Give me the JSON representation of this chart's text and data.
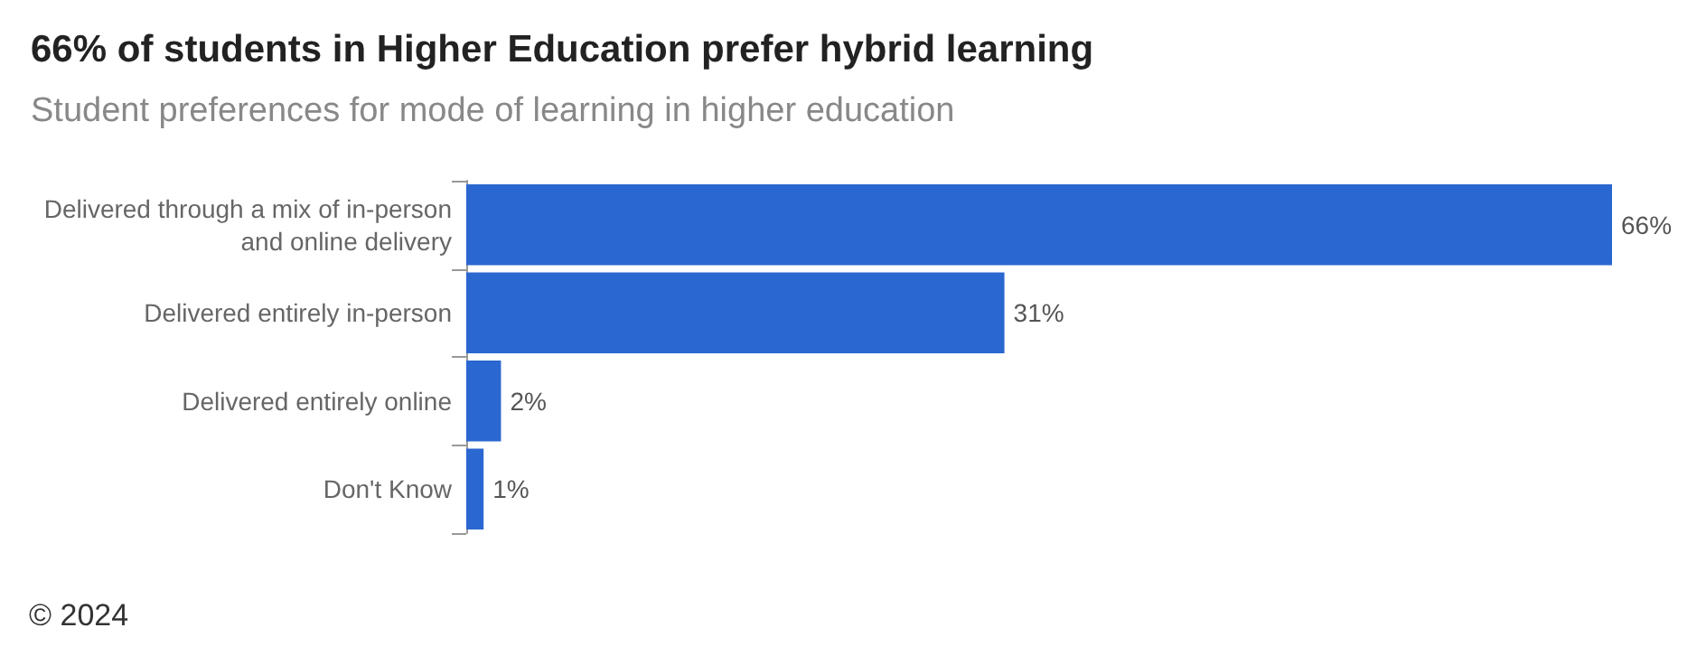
{
  "chart_data": {
    "type": "bar",
    "orientation": "horizontal",
    "title": "66% of students in Higher Education prefer hybrid learning",
    "subtitle": "Student preferences for mode of learning in higher education",
    "categories": [
      "Delivered through a mix of in-person and online delivery",
      "Delivered entirely in-person",
      "Delivered entirely online",
      "Don't Know"
    ],
    "values": [
      66,
      31,
      2,
      1
    ],
    "value_labels": [
      "66%",
      "31%",
      "2%",
      "1%"
    ],
    "color": "#2a67d0",
    "annotations": [
      "© 2024"
    ]
  }
}
